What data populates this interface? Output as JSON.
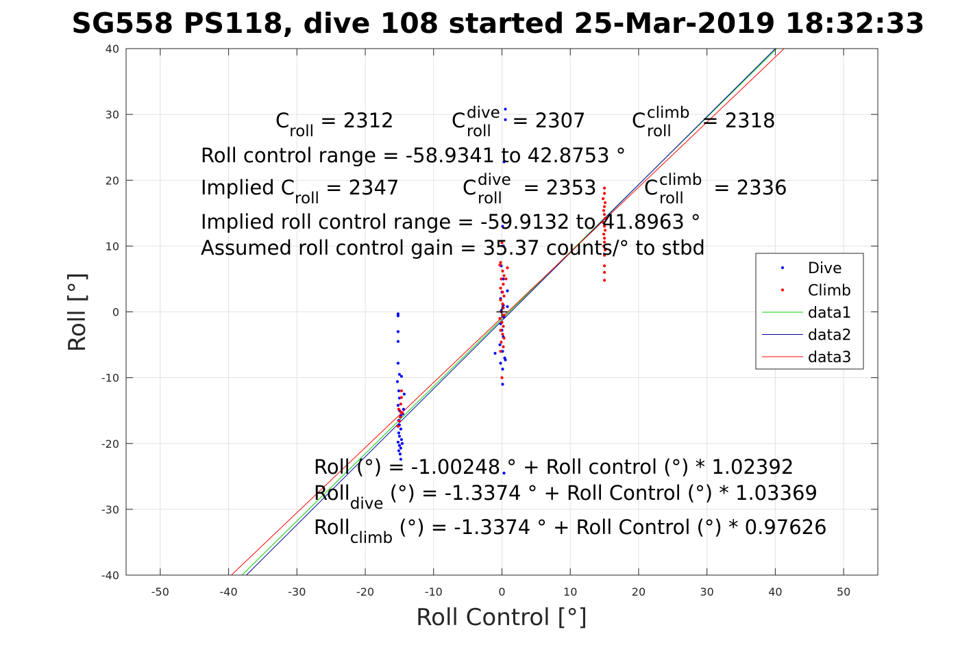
{
  "chart_data": {
    "type": "scatter",
    "title": "SG558 PS118, dive 108 started 25-Mar-2019 18:32:33",
    "xlabel": "Roll Control [°]",
    "ylabel": "Roll [°]",
    "xlim": [
      -55,
      55
    ],
    "ylim": [
      -40,
      40
    ],
    "xticks": [
      -50,
      -40,
      -30,
      -20,
      -10,
      0,
      10,
      20,
      30,
      40,
      50
    ],
    "yticks": [
      -40,
      -30,
      -20,
      -10,
      0,
      10,
      20,
      30,
      40
    ],
    "xtick_labels": [
      "-50",
      "-40",
      "-30",
      "-20",
      "-10",
      "0",
      "10",
      "20",
      "30",
      "40",
      "50"
    ],
    "ytick_labels": [
      "-40",
      "-30",
      "-20",
      "-10",
      "0",
      "10",
      "20",
      "30",
      "40"
    ],
    "grid": true,
    "legend_position": "right",
    "series": [
      {
        "name": "Dive",
        "kind": "points",
        "color": "#0000ff",
        "points": [
          [
            -15.2,
            -0.3
          ],
          [
            -15.2,
            -0.6
          ],
          [
            -15.2,
            -3.0
          ],
          [
            -15.2,
            -4.5
          ],
          [
            -15.2,
            -7.8
          ],
          [
            -15.0,
            -9.5
          ],
          [
            -15.3,
            -10.6
          ],
          [
            -15.1,
            -12.0
          ],
          [
            -15.0,
            -13.1
          ],
          [
            -15.2,
            -14.2
          ],
          [
            -15.0,
            -15.0
          ],
          [
            -14.8,
            -15.8
          ],
          [
            -15.1,
            -16.5
          ],
          [
            -15.0,
            -17.2
          ],
          [
            -14.8,
            -17.8
          ],
          [
            -15.1,
            -18.4
          ],
          [
            -15.0,
            -18.9
          ],
          [
            -14.7,
            -19.4
          ],
          [
            -15.2,
            -19.8
          ],
          [
            -15.0,
            -20.3
          ],
          [
            -14.8,
            -20.7
          ],
          [
            -15.1,
            -21.1
          ],
          [
            -14.9,
            -21.6
          ],
          [
            -14.6,
            -20.0
          ],
          [
            -14.8,
            -22.4
          ],
          [
            -14.5,
            -15.5
          ],
          [
            -14.3,
            -12.5
          ],
          [
            -14.7,
            -9.8
          ],
          [
            -14.4,
            -14.8
          ],
          [
            0.5,
            30.8
          ],
          [
            0.5,
            29.2
          ],
          [
            0.3,
            22.8
          ],
          [
            0.1,
            13.0
          ],
          [
            0.2,
            10.0
          ],
          [
            -0.1,
            7.0
          ],
          [
            0.2,
            5.0
          ],
          [
            0.0,
            3.0
          ],
          [
            -0.2,
            2.0
          ],
          [
            0.2,
            1.0
          ],
          [
            -0.1,
            0.2
          ],
          [
            0.3,
            -0.8
          ],
          [
            -0.2,
            -1.8
          ],
          [
            0.0,
            -2.8
          ],
          [
            0.2,
            -3.8
          ],
          [
            -0.3,
            -5.0
          ],
          [
            0.1,
            -6.0
          ],
          [
            0.4,
            -7.0
          ],
          [
            -0.2,
            -7.8
          ],
          [
            0.1,
            -8.7
          ],
          [
            0.1,
            -11.0
          ],
          [
            -1.0,
            -6.3
          ],
          [
            0.5,
            -7.3
          ],
          [
            0.8,
            3.2
          ],
          [
            0.8,
            0.8
          ],
          [
            0.3,
            -24.5
          ]
        ]
      },
      {
        "name": "Climb",
        "kind": "points",
        "color": "#ff0000",
        "points": [
          [
            -14.7,
            -13.0
          ],
          [
            -14.8,
            -14.0
          ],
          [
            -15.1,
            -14.8
          ],
          [
            -14.6,
            -15.4
          ],
          [
            -14.9,
            -16.0
          ],
          [
            -15.0,
            -16.6
          ],
          [
            -14.7,
            -12.0
          ],
          [
            -15.2,
            -17.4
          ],
          [
            -14.8,
            -15.2
          ],
          [
            0.0,
            10.5
          ],
          [
            -0.2,
            7.5
          ],
          [
            0.1,
            6.2
          ],
          [
            0.3,
            5.5
          ],
          [
            -0.1,
            5.0
          ],
          [
            0.2,
            4.2
          ],
          [
            -0.2,
            3.6
          ],
          [
            0.1,
            3.0
          ],
          [
            0.3,
            2.4
          ],
          [
            -0.2,
            1.8
          ],
          [
            0.1,
            1.2
          ],
          [
            0.2,
            0.6
          ],
          [
            -0.1,
            0.0
          ],
          [
            0.3,
            -0.5
          ],
          [
            -0.3,
            -1.0
          ],
          [
            0.0,
            -1.6
          ],
          [
            0.2,
            -2.2
          ],
          [
            -0.2,
            -2.8
          ],
          [
            0.1,
            -3.4
          ],
          [
            0.3,
            -4.0
          ],
          [
            -0.1,
            -4.6
          ],
          [
            0.2,
            -5.3
          ],
          [
            -0.2,
            -6.0
          ],
          [
            0.0,
            -10.0
          ],
          [
            0.6,
            5.0
          ],
          [
            0.8,
            6.7
          ],
          [
            -0.3,
            7.1
          ],
          [
            15.0,
            18.8
          ],
          [
            15.0,
            18.0
          ],
          [
            14.8,
            17.2
          ],
          [
            15.1,
            16.6
          ],
          [
            15.0,
            16.0
          ],
          [
            14.9,
            15.4
          ],
          [
            15.0,
            14.8
          ],
          [
            15.1,
            14.2
          ],
          [
            14.8,
            13.6
          ],
          [
            15.0,
            13.0
          ],
          [
            15.1,
            12.4
          ],
          [
            14.9,
            11.8
          ],
          [
            15.0,
            11.2
          ],
          [
            15.0,
            10.6
          ],
          [
            14.9,
            10.0
          ],
          [
            15.1,
            9.4
          ],
          [
            15.0,
            8.6
          ],
          [
            15.0,
            7.0
          ],
          [
            15.0,
            6.0
          ],
          [
            15.0,
            4.8
          ]
        ]
      },
      {
        "name": "data1",
        "kind": "line",
        "color": "#00d000",
        "points": [
          [
            -38.05,
            -40
          ],
          [
            40.2,
            40
          ]
        ]
      },
      {
        "name": "data2",
        "kind": "line",
        "color": "#0000a8",
        "points": [
          [
            -37.4,
            -40
          ],
          [
            40.0,
            40
          ]
        ]
      },
      {
        "name": "data3",
        "kind": "line",
        "color": "#ff0000",
        "points": [
          [
            -39.6,
            -40
          ],
          [
            41.3,
            40
          ]
        ]
      },
      {
        "name": "",
        "kind": "marker",
        "color": "#000000",
        "points": [
          [
            0,
            0
          ]
        ]
      }
    ],
    "annotations": {
      "c_roll": {
        "base": "C",
        "sub": "roll",
        "rest": " = 2312"
      },
      "c_roll_dive": {
        "base": "C",
        "sup": "dive",
        "sub": "roll",
        "rest": " = 2307"
      },
      "c_roll_climb": {
        "base": "C",
        "sup": "climb",
        "sub": "roll",
        "rest": " = 2318"
      },
      "range_line": "Roll control range = -58.9341 to 42.8753 °",
      "implied_c_roll": {
        "base": "Implied C",
        "sub": "roll",
        "rest": " = 2347"
      },
      "implied_c_roll_dive": {
        "base": "C",
        "sup": "dive",
        "sub": "roll",
        "rest": " = 2353"
      },
      "implied_c_roll_climb": {
        "base": "C",
        "sup": "climb",
        "sub": "roll",
        "rest": " = 2336"
      },
      "implied_range_line": "Implied roll control range = -59.9132 to 41.8963 °",
      "gain_line": "Assumed roll control gain = 35.37 counts/° to stbd",
      "fit_line": "Roll (°) = -1.00248 ° + Roll control (°) * 1.02392",
      "fit_dive": {
        "base": "Roll",
        "sub": "dive",
        "rest": " (°) = -1.3374 ° + Roll Control (°) * 1.03369"
      },
      "fit_climb": {
        "base": "Roll",
        "sub": "climb",
        "rest": " (°) = -1.3374 ° + Roll Control (°) * 0.97626"
      }
    }
  }
}
